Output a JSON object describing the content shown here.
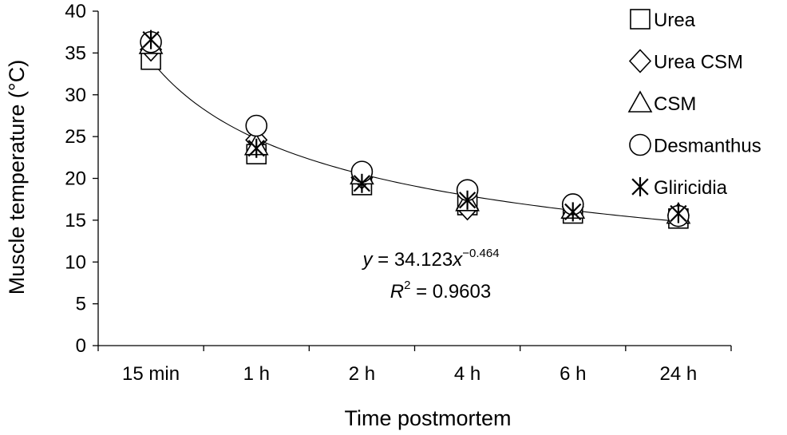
{
  "chart_data": {
    "type": "scatter",
    "categories": [
      "15 min",
      "1 h",
      "2 h",
      "4 h",
      "6 h",
      "24 h"
    ],
    "xlabel": "Time postmortem",
    "ylabel": "Muscle temperature (°C)",
    "ylim": [
      0,
      40
    ],
    "yticks": [
      0,
      5,
      10,
      15,
      20,
      25,
      30,
      35,
      40
    ],
    "grid": false,
    "legend_position": "right",
    "series": [
      {
        "name": "Urea",
        "marker": "square",
        "values": [
          34.2,
          22.9,
          19.2,
          16.8,
          15.8,
          15.2
        ]
      },
      {
        "name": "Urea CSM",
        "marker": "diamond",
        "values": [
          35.4,
          24.6,
          20.1,
          16.4,
          16.6,
          15.6
        ]
      },
      {
        "name": "CSM",
        "marker": "triangle",
        "values": [
          36.0,
          23.9,
          20.4,
          17.2,
          16.3,
          15.7
        ]
      },
      {
        "name": "Desmanthus",
        "marker": "circle",
        "values": [
          36.3,
          26.3,
          20.8,
          18.6,
          16.9,
          15.5
        ]
      },
      {
        "name": "Gliricidia",
        "marker": "asterisk",
        "values": [
          36.6,
          23.6,
          19.4,
          17.4,
          16.0,
          15.8
        ]
      }
    ],
    "trendline": {
      "a": 34.123,
      "b": -0.464
    },
    "equation": {
      "y_var": "y",
      "eq_text": " = 34.123",
      "x_var": "x",
      "exponent": "−0.464",
      "r_var": "R",
      "r_sup": "2",
      "r_text": " = 0.9603"
    }
  }
}
